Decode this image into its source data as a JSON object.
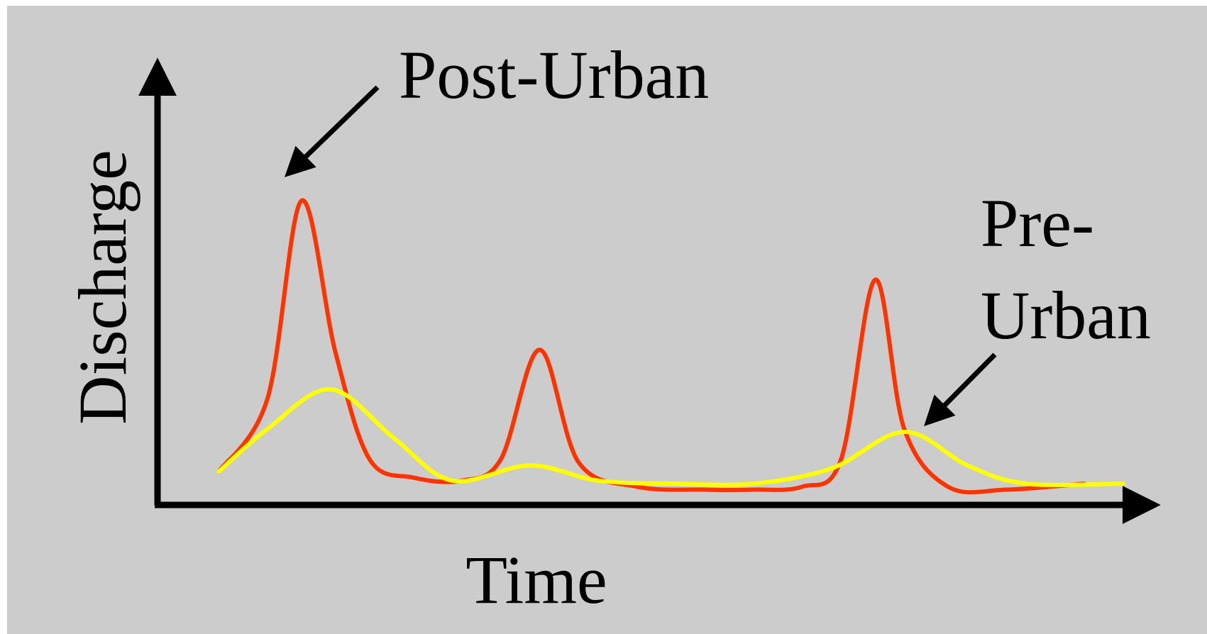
{
  "colors": {
    "background": "#cccccc",
    "axis": "#000000",
    "post_urban": "#ff3300",
    "pre_urban": "#ffff00"
  },
  "chart_data": {
    "type": "line",
    "title": "",
    "xlabel": "Time",
    "ylabel": "Discharge",
    "xlim": [
      0,
      100
    ],
    "ylim": [
      0,
      100
    ],
    "grid": false,
    "axis_ticks": false,
    "annotations": [
      {
        "text": "Post-Urban",
        "series": "Post-Urban",
        "points_to": "first peak"
      },
      {
        "text_lines": [
          "Pre-",
          "Urban"
        ],
        "series": "Pre-Urban",
        "points_to": "last peak"
      }
    ],
    "series": [
      {
        "name": "Post-Urban",
        "color": "#ff3300",
        "points": [
          [
            5,
            11
          ],
          [
            10,
            35
          ],
          [
            13.5,
            100
          ],
          [
            17,
            50
          ],
          [
            20.5,
            15
          ],
          [
            25,
            9
          ],
          [
            30,
            8
          ],
          [
            34,
            15
          ],
          [
            38,
            51
          ],
          [
            42,
            14
          ],
          [
            48,
            6
          ],
          [
            55,
            5
          ],
          [
            60,
            5
          ],
          [
            65,
            6
          ],
          [
            69,
            15
          ],
          [
            72.5,
            74
          ],
          [
            75.5,
            25
          ],
          [
            80,
            6
          ],
          [
            86,
            5
          ],
          [
            94,
            7
          ]
        ]
      },
      {
        "name": "Pre-Urban",
        "color": "#ffff00",
        "points": [
          [
            5,
            11
          ],
          [
            10,
            25
          ],
          [
            16.5,
            38
          ],
          [
            23,
            22
          ],
          [
            29,
            8
          ],
          [
            37,
            13
          ],
          [
            44,
            8
          ],
          [
            52,
            7
          ],
          [
            60,
            7
          ],
          [
            68,
            12
          ],
          [
            75.5,
            24
          ],
          [
            82,
            13
          ],
          [
            88,
            7
          ],
          [
            98,
            7
          ]
        ]
      }
    ]
  }
}
